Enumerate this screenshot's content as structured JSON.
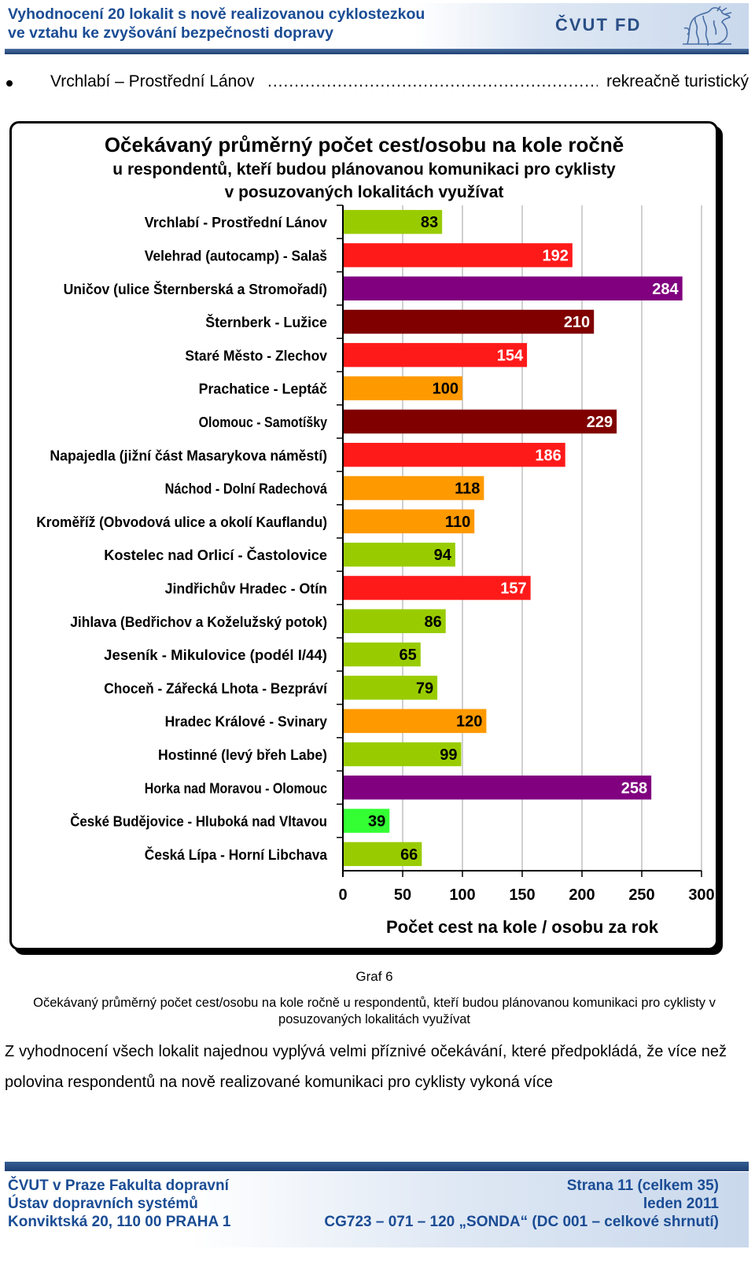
{
  "header": {
    "title_line1": "Vyhodnocení 20 lokalit s nově realizovanou cyklostezkou",
    "title_line2": "ve vztahu ke zvyšování bezpečnosti dopravy",
    "logo_text": "ČVUT FD"
  },
  "bullet": {
    "left": "Vrchlabí – Prostřední Lánov",
    "dots": "..........................................................................................",
    "right": "rekreačně turistický"
  },
  "chart_data": {
    "type": "bar",
    "orientation": "horizontal",
    "title": "Očekávaný průměrný počet cest/osobu na kole ročně",
    "subtitle_line1": "u respondentů, kteří budou plánovanou komunikaci pro cyklisty",
    "subtitle_line2": "v posuzovaných lokalitách využívat",
    "xlabel": "Počet cest na kole / osobu za rok",
    "xlim": [
      0,
      300
    ],
    "xticks": [
      "0",
      "50",
      "100",
      "150",
      "200",
      "250",
      "300"
    ],
    "categories": [
      "Vrchlabí - Prostřední Lánov",
      "Velehrad (autocamp) - Salaš",
      "Uničov (ulice Šternberská a Stromořadí)",
      "Šternberk - Lužice",
      "Staré Město - Zlechov",
      "Prachatice - Leptáč",
      "Olomouc - Samotíšky",
      "Napajedla (jižní část Masarykova náměstí)",
      "Náchod - Dolní Radechová",
      "Kroměříž (Obvodová ulice a okolí Kauflandu)",
      "Kostelec nad Orlicí - Častolovice",
      "Jindřichův Hradec - Otín",
      "Jihlava (Bedřichov a Koželužský potok)",
      "Jeseník - Mikulovice (podél I/44)",
      "Choceň - Zářecká Lhota - Bezpráví",
      "Hradec Králové - Svinary",
      "Hostinné (levý břeh Labe)",
      "Horka nad Moravou - Olomouc",
      "České Budějovice - Hluboká nad Vltavou",
      "Česká Lípa - Horní Libchava"
    ],
    "values": [
      83,
      192,
      284,
      210,
      154,
      100,
      229,
      186,
      118,
      110,
      94,
      157,
      86,
      65,
      79,
      120,
      99,
      258,
      39,
      66
    ],
    "colors": [
      "#99cc00",
      "#ff1a1a",
      "#800080",
      "#800000",
      "#ff1a1a",
      "#ff9900",
      "#800000",
      "#ff1a1a",
      "#ff9900",
      "#ff9900",
      "#99cc00",
      "#ff1a1a",
      "#99cc00",
      "#99cc00",
      "#99cc00",
      "#ff9900",
      "#99cc00",
      "#800080",
      "#33ff33",
      "#99cc00"
    ],
    "grid": "vertical"
  },
  "caption": {
    "number": "Graf 6",
    "text": "Očekávaný průměrný počet cest/osobu na kole ročně u respondentů, kteří budou plánovanou komunikaci pro cyklisty v posuzovaných lokalitách využívat"
  },
  "body": {
    "paragraph": "Z vyhodnocení všech lokalit najednou vyplývá velmi příznivé očekávání, které předpokládá, že více než polovina respondentů na nově realizované komunikaci pro cyklisty vykoná více"
  },
  "footer": {
    "left_line1": "ČVUT v Praze Fakulta dopravní",
    "left_line2": "Ústav dopravních systémů",
    "left_line3": "Konviktská 20, 110 00  PRAHA 1",
    "right_line1": "Strana 11 (celkem 35)",
    "right_line2": "leden 2011",
    "right_line3": "CG723 – 071 – 120 „SONDA“ (DC 001 – celkové shrnutí)"
  }
}
